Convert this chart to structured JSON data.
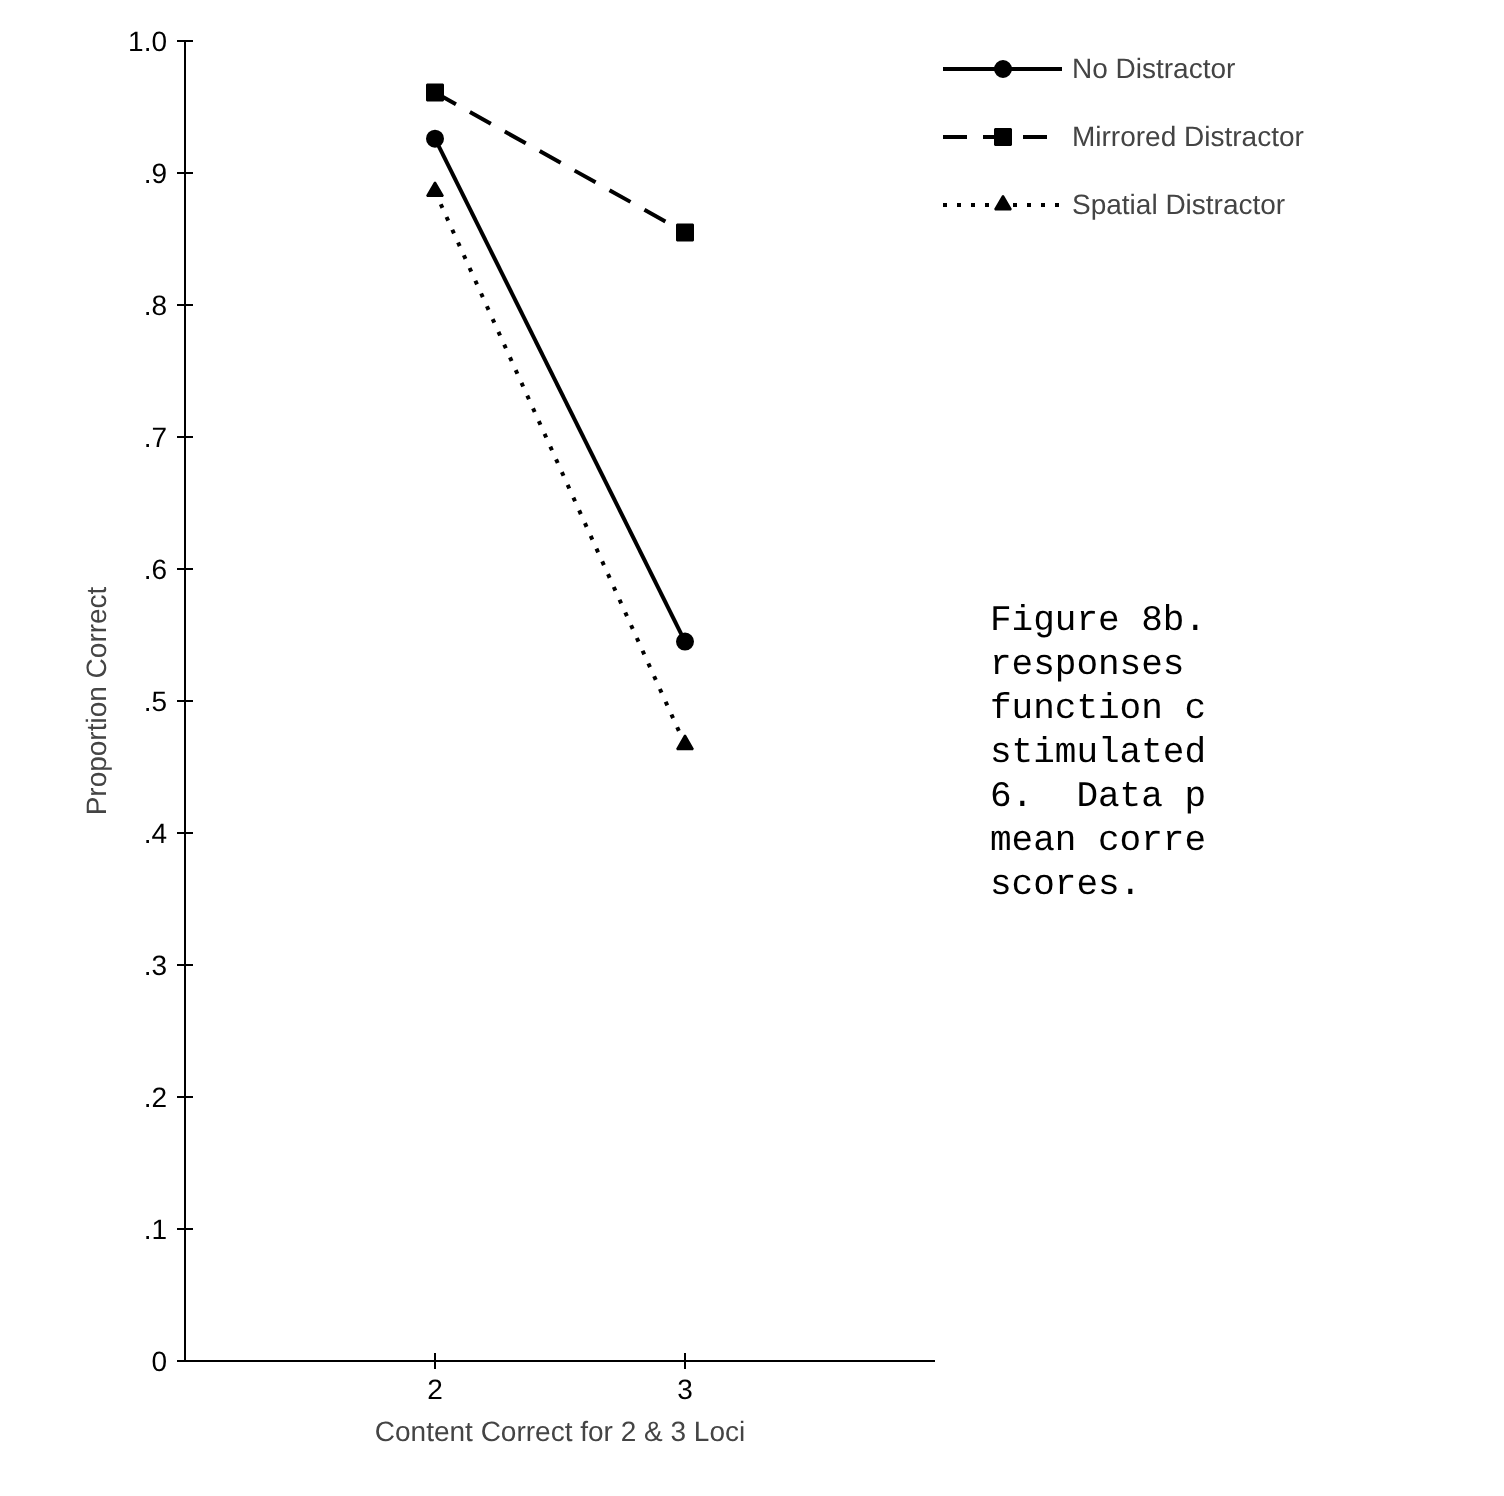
{
  "chart_data": {
    "type": "line",
    "xlabel": "Content Correct for 2 & 3 Loci",
    "ylabel": "Proportion Correct",
    "x": [
      2,
      3
    ],
    "series": [
      {
        "name": "No Distractor",
        "color": "#000000",
        "values": [
          0.926,
          0.545
        ],
        "marker": "circle",
        "line_style": "solid"
      },
      {
        "name": "Mirrored Distractor",
        "color": "#000000",
        "values": [
          0.961,
          0.855
        ],
        "marker": "square",
        "line_style": "dashed"
      },
      {
        "name": "Spatial Distractor",
        "color": "#000000",
        "values": [
          0.886,
          0.467
        ],
        "marker": "triangle",
        "line_style": "dotted"
      }
    ],
    "xlim": [
      1,
      4
    ],
    "xticks": [
      2,
      3
    ],
    "ylim": [
      0,
      1.0
    ],
    "yticks": [
      0,
      {
        "value": 0.1,
        "label": ".1"
      },
      {
        "value": 0.2,
        "label": ".2"
      },
      {
        "value": 0.3,
        "label": ".3"
      },
      {
        "value": 0.4,
        "label": ".4"
      },
      {
        "value": 0.5,
        "label": ".5"
      },
      {
        "value": 0.6,
        "label": ".6"
      },
      {
        "value": 0.7,
        "label": ".7"
      },
      {
        "value": 0.8,
        "label": ".8"
      },
      {
        "value": 0.9,
        "label": ".9"
      },
      {
        "value": 1.0,
        "label": "1.0"
      }
    ],
    "grid": false,
    "legend": "right",
    "annotations": [
      "Figure 8b.\nresponses\nfunction c\nstimulated\n6.  Data p\nmean corre\nscores."
    ]
  }
}
